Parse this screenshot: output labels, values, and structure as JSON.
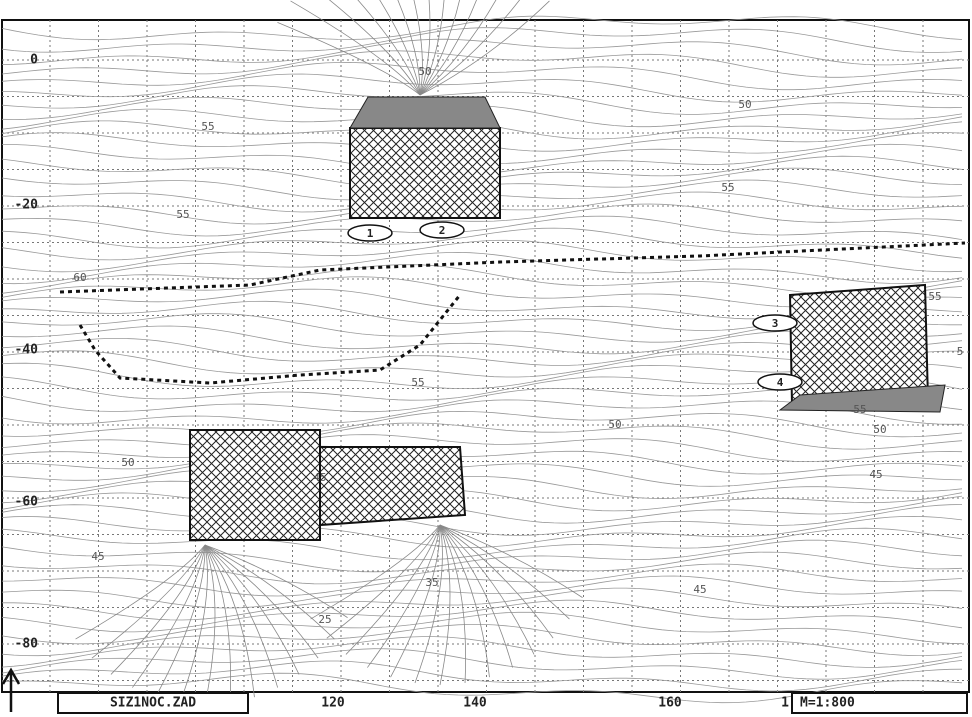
{
  "y_axis_labels": [
    "0",
    "-20",
    "-40",
    "-60",
    "-80"
  ],
  "x_axis_labels": [
    "120",
    "140",
    "160",
    "1"
  ],
  "contour_labels": [
    "50",
    "50",
    "55",
    "55",
    "55",
    "60",
    "55",
    "50",
    "50",
    "45",
    "45",
    "35",
    "25",
    "45",
    "45",
    "55",
    "50",
    "55",
    "5"
  ],
  "receivers": [
    "1",
    "2",
    "3",
    "4"
  ],
  "file_name": "SIZ1NOC.ZAD",
  "scale": "M=1:800"
}
